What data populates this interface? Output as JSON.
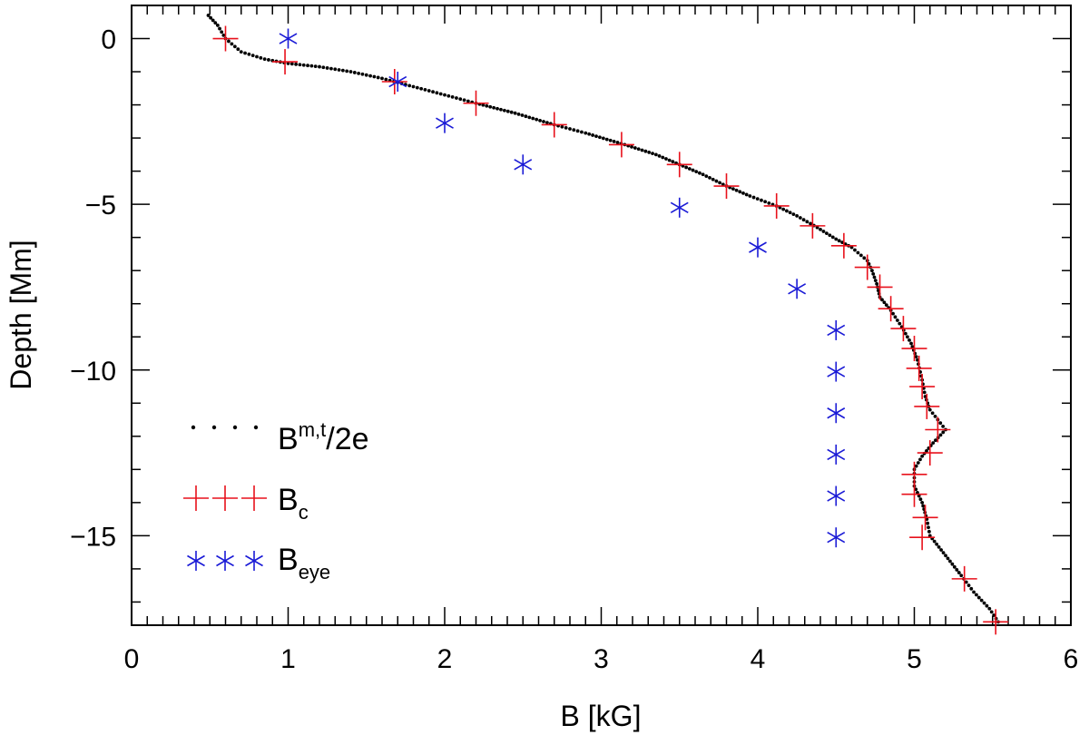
{
  "chart_data": {
    "type": "scatter",
    "xlabel": "B [kG]",
    "ylabel": "Depth [Mm]",
    "xlim": [
      0,
      6
    ],
    "ylim": [
      -17.7,
      1.0
    ],
    "x_ticks": [
      0,
      1,
      2,
      3,
      4,
      5,
      6
    ],
    "y_ticks": [
      0,
      -5,
      -10,
      -15
    ],
    "x_tick_labels": [
      "0",
      "1",
      "2",
      "3",
      "4",
      "5",
      "6"
    ],
    "y_tick_labels": [
      "0",
      "−5",
      "−10",
      "−15"
    ],
    "legend_position": "bottom-left",
    "series": [
      {
        "name": "B^{m,t}/2e",
        "legend_main": "B",
        "legend_sup": "m,t",
        "legend_tail": "/2e",
        "marker": "dot",
        "color": "#000000",
        "curve": [
          [
            0.49,
            0.7
          ],
          [
            0.55,
            0.4
          ],
          [
            0.6,
            0.0
          ],
          [
            0.7,
            -0.4
          ],
          [
            0.85,
            -0.62
          ],
          [
            1.0,
            -0.75
          ],
          [
            1.2,
            -0.85
          ],
          [
            1.4,
            -1.0
          ],
          [
            1.6,
            -1.2
          ],
          [
            1.8,
            -1.45
          ],
          [
            2.0,
            -1.7
          ],
          [
            2.2,
            -1.95
          ],
          [
            2.45,
            -2.25
          ],
          [
            2.7,
            -2.6
          ],
          [
            2.9,
            -2.85
          ],
          [
            3.15,
            -3.2
          ],
          [
            3.35,
            -3.5
          ],
          [
            3.5,
            -3.8
          ],
          [
            3.65,
            -4.1
          ],
          [
            3.8,
            -4.45
          ],
          [
            3.95,
            -4.75
          ],
          [
            4.12,
            -5.05
          ],
          [
            4.25,
            -5.35
          ],
          [
            4.38,
            -5.7
          ],
          [
            4.5,
            -6.05
          ],
          [
            4.6,
            -6.3
          ],
          [
            4.7,
            -6.7
          ],
          [
            4.73,
            -7.0
          ],
          [
            4.76,
            -7.4
          ],
          [
            4.78,
            -7.8
          ],
          [
            4.85,
            -8.2
          ],
          [
            4.92,
            -8.7
          ],
          [
            4.98,
            -9.2
          ],
          [
            5.02,
            -9.7
          ],
          [
            5.05,
            -10.3
          ],
          [
            5.07,
            -10.8
          ],
          [
            5.1,
            -11.2
          ],
          [
            5.15,
            -11.5
          ],
          [
            5.2,
            -11.8
          ],
          [
            5.12,
            -12.2
          ],
          [
            5.05,
            -12.6
          ],
          [
            5.0,
            -13.0
          ],
          [
            5.0,
            -13.5
          ],
          [
            5.05,
            -14.0
          ],
          [
            5.08,
            -14.5
          ],
          [
            5.1,
            -15.0
          ],
          [
            5.2,
            -15.6
          ],
          [
            5.3,
            -16.2
          ],
          [
            5.38,
            -16.7
          ],
          [
            5.48,
            -17.2
          ],
          [
            5.55,
            -17.7
          ]
        ]
      },
      {
        "name": "B_c",
        "legend_main": "B",
        "legend_sub": "c",
        "marker": "plus",
        "color": "#e8111b",
        "x": [
          0.6,
          0.98,
          1.68,
          2.2,
          2.7,
          3.13,
          3.5,
          3.8,
          4.12,
          4.35,
          4.55,
          4.7,
          4.78,
          4.85,
          4.93,
          5.0,
          5.03,
          5.05,
          5.08,
          5.15,
          5.1,
          5.0,
          5.0,
          5.07,
          5.05,
          5.32,
          5.52
        ],
        "y": [
          0.0,
          -0.7,
          -1.3,
          -1.95,
          -2.6,
          -3.2,
          -3.8,
          -4.45,
          -5.05,
          -5.65,
          -6.25,
          -6.9,
          -7.5,
          -8.15,
          -8.75,
          -9.35,
          -9.95,
          -10.5,
          -11.1,
          -11.8,
          -12.5,
          -13.15,
          -13.75,
          -14.45,
          -15.05,
          -16.3,
          -17.6
        ]
      },
      {
        "name": "B_eye",
        "legend_main": "B",
        "legend_sub": "eye",
        "marker": "asterisk",
        "color": "#1a1ad6",
        "x": [
          1.0,
          1.7,
          2.0,
          2.5,
          3.5,
          4.0,
          4.25,
          4.5,
          4.5,
          4.5,
          4.5,
          4.5,
          4.5
        ],
        "y": [
          0.0,
          -1.3,
          -2.55,
          -3.8,
          -5.1,
          -6.3,
          -7.55,
          -8.8,
          -10.05,
          -11.3,
          -12.55,
          -13.8,
          -15.05
        ]
      }
    ]
  }
}
